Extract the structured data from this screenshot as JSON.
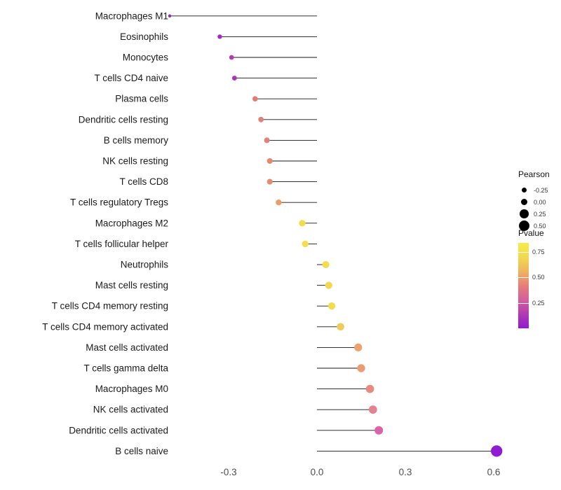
{
  "chart_data": {
    "type": "scatter",
    "variant": "lollipop",
    "title": "",
    "xlabel": "",
    "ylabel": "",
    "grid": false,
    "xlim": [
      -0.55,
      0.68
    ],
    "x_ticks": [
      -0.3,
      0.0,
      0.3,
      0.6
    ],
    "x_tick_labels": [
      "-0.3",
      "0.0",
      "0.3",
      "0.6"
    ],
    "points": [
      {
        "label": "Macrophages M1",
        "pearson": -0.5,
        "pvalue": 0.1,
        "color": "#8c2fb5"
      },
      {
        "label": "Eosinophils",
        "pearson": -0.33,
        "pvalue": 0.15,
        "color": "#a428c2"
      },
      {
        "label": "Monocytes",
        "pearson": -0.29,
        "pvalue": 0.22,
        "color": "#b93aae"
      },
      {
        "label": "T cells CD4 naive",
        "pearson": -0.28,
        "pvalue": 0.18,
        "color": "#ae33b8"
      },
      {
        "label": "Plasma cells",
        "pearson": -0.21,
        "pvalue": 0.5,
        "color": "#e27c72"
      },
      {
        "label": "Dendritic cells resting",
        "pearson": -0.19,
        "pvalue": 0.5,
        "color": "#e38077"
      },
      {
        "label": "B cells memory",
        "pearson": -0.17,
        "pvalue": 0.48,
        "color": "#e3807b"
      },
      {
        "label": "NK cells resting",
        "pearson": -0.16,
        "pvalue": 0.52,
        "color": "#e6866f"
      },
      {
        "label": "T cells CD8",
        "pearson": -0.16,
        "pvalue": 0.52,
        "color": "#e78a72"
      },
      {
        "label": "T cells regulatory Tregs",
        "pearson": -0.13,
        "pvalue": 0.58,
        "color": "#eb9e67"
      },
      {
        "label": "Macrophages M2",
        "pearson": -0.05,
        "pvalue": 0.88,
        "color": "#f2dd49"
      },
      {
        "label": "T cells follicular helper",
        "pearson": -0.04,
        "pvalue": 0.88,
        "color": "#f2df4b"
      },
      {
        "label": "Neutrophils",
        "pearson": 0.03,
        "pvalue": 0.87,
        "color": "#f2de4d"
      },
      {
        "label": "Mast cells resting",
        "pearson": 0.04,
        "pvalue": 0.85,
        "color": "#f1d94f"
      },
      {
        "label": "T cells CD4 memory resting",
        "pearson": 0.05,
        "pvalue": 0.85,
        "color": "#f1db4e"
      },
      {
        "label": "T cells CD4 memory activated",
        "pearson": 0.08,
        "pvalue": 0.78,
        "color": "#efcb5d"
      },
      {
        "label": "Mast cells activated",
        "pearson": 0.14,
        "pvalue": 0.58,
        "color": "#eca26b"
      },
      {
        "label": "T cells gamma delta",
        "pearson": 0.15,
        "pvalue": 0.55,
        "color": "#ea9c72"
      },
      {
        "label": "Macrophages M0",
        "pearson": 0.18,
        "pvalue": 0.48,
        "color": "#e78b7e"
      },
      {
        "label": "NK cells activated",
        "pearson": 0.19,
        "pvalue": 0.42,
        "color": "#e48390"
      },
      {
        "label": "Dendritic cells activated",
        "pearson": 0.21,
        "pvalue": 0.33,
        "color": "#da64a5"
      },
      {
        "label": "B cells naive",
        "pearson": 0.61,
        "pvalue": 0.02,
        "color": "#8f1bd3"
      }
    ],
    "legend_pearson": {
      "title": "Pearson",
      "items": [
        {
          "label": "-0.25",
          "value": -0.25
        },
        {
          "label": "0.00",
          "value": 0.0
        },
        {
          "label": "0.25",
          "value": 0.25
        },
        {
          "label": "0.50",
          "value": 0.5
        }
      ],
      "dot_color": "#000000"
    },
    "legend_pvalue": {
      "title": "Pvalue",
      "labels": [
        "0.75",
        "0.50",
        "0.25"
      ],
      "label_values": [
        0.75,
        0.5,
        0.25
      ],
      "bar_max": 0.84,
      "gradient": [
        "#f6ec46",
        "#f2d94f",
        "#eeb45f",
        "#e67e79",
        "#d45f9e",
        "#b13bb0",
        "#8f1bd3"
      ]
    }
  }
}
